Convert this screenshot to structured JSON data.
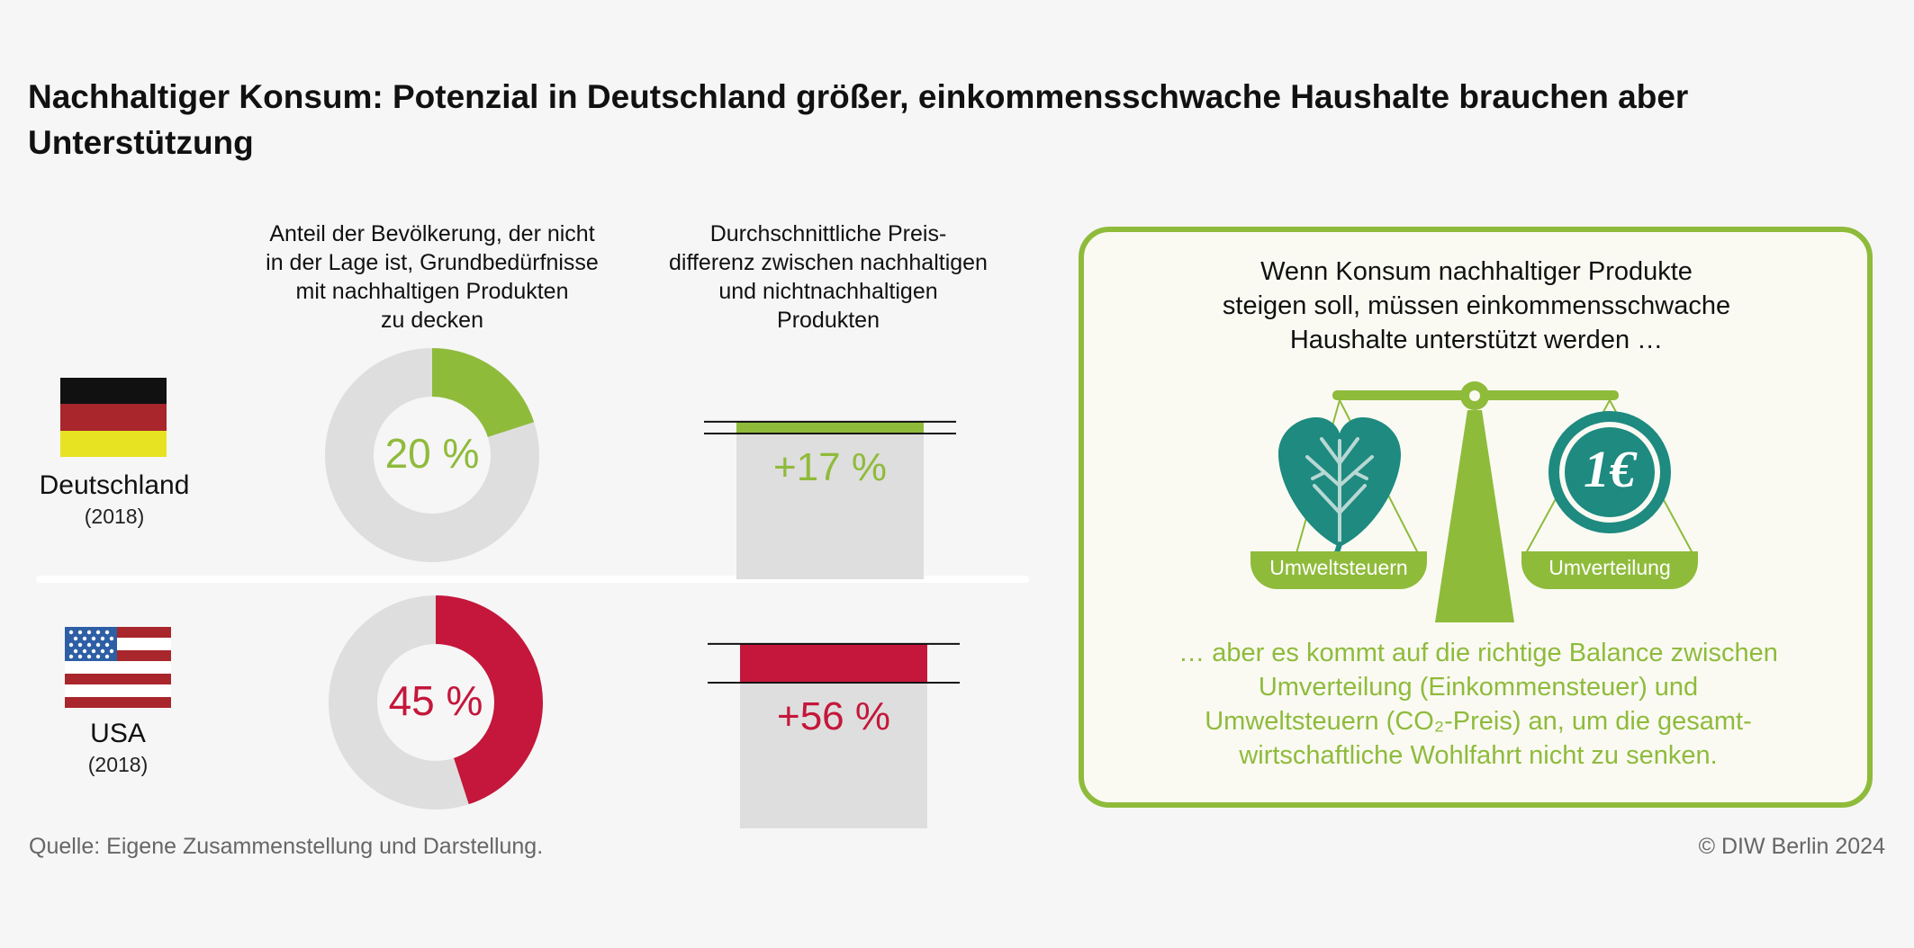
{
  "title": "Nachhaltiger Konsum: Potenzial in Deutschland größer, einkommensschwache Haushalte brauchen aber Unterstützung",
  "columns": {
    "share_header": "Anteil der Bevölkerung, der nicht\nin der Lage ist, Grundbedürfnisse\nmit nachhaltigen Produkten\nzu decken",
    "price_header": "Durchschnittliche Preis-\ndifferenz zwischen nachhaltigen\nund nichtnachhaltigen\nProdukten"
  },
  "countries": [
    {
      "name": "Deutschland",
      "year": "(2018)",
      "share_label": "20 %",
      "price_label": "+17 %"
    },
    {
      "name": "USA",
      "year": "(2018)",
      "share_label": "45 %",
      "price_label": "+56 %"
    }
  ],
  "panel": {
    "top_text": "Wenn Konsum nachhaltiger Produkte\nsteigen soll,  müssen einkommensschwache\nHaushalte unterstützt werden …",
    "left_pan_label": "Umweltsteuern",
    "right_pan_label": "Umverteilung",
    "coin_label": "1€",
    "bottom_text": "… aber es kommt auf die richtige Balance zwischen\nUmverteilung (Einkommensteuer) und\nUmweltsteuern (CO₂-Preis) an, um die gesamt-\nwirtschaftliche Wohlfahrt nicht zu senken."
  },
  "footer": {
    "source": "Quelle: Eigene Zusammenstellung und Darstellung.",
    "copyright": "© DIW Berlin 2024"
  },
  "colors": {
    "germany": "#8fbb3b",
    "usa": "#c4173b",
    "track": "#dedede",
    "teal": "#1e8a80"
  },
  "chart_data": [
    {
      "type": "pie",
      "title": "Anteil der Bevölkerung, der nicht in der Lage ist, Grundbedürfnisse mit nachhaltigen Produkten zu decken",
      "unit": "%",
      "series": [
        {
          "name": "Deutschland",
          "value": 20,
          "year": 2018
        },
        {
          "name": "USA",
          "value": 45,
          "year": 2018
        }
      ]
    },
    {
      "type": "bar",
      "title": "Durchschnittliche Preisdifferenz zwischen nachhaltigen und nichtnachhaltigen Produkten",
      "unit": "%",
      "series": [
        {
          "name": "Deutschland",
          "value": 17,
          "year": 2018
        },
        {
          "name": "USA",
          "value": 56,
          "year": 2018
        }
      ]
    }
  ]
}
